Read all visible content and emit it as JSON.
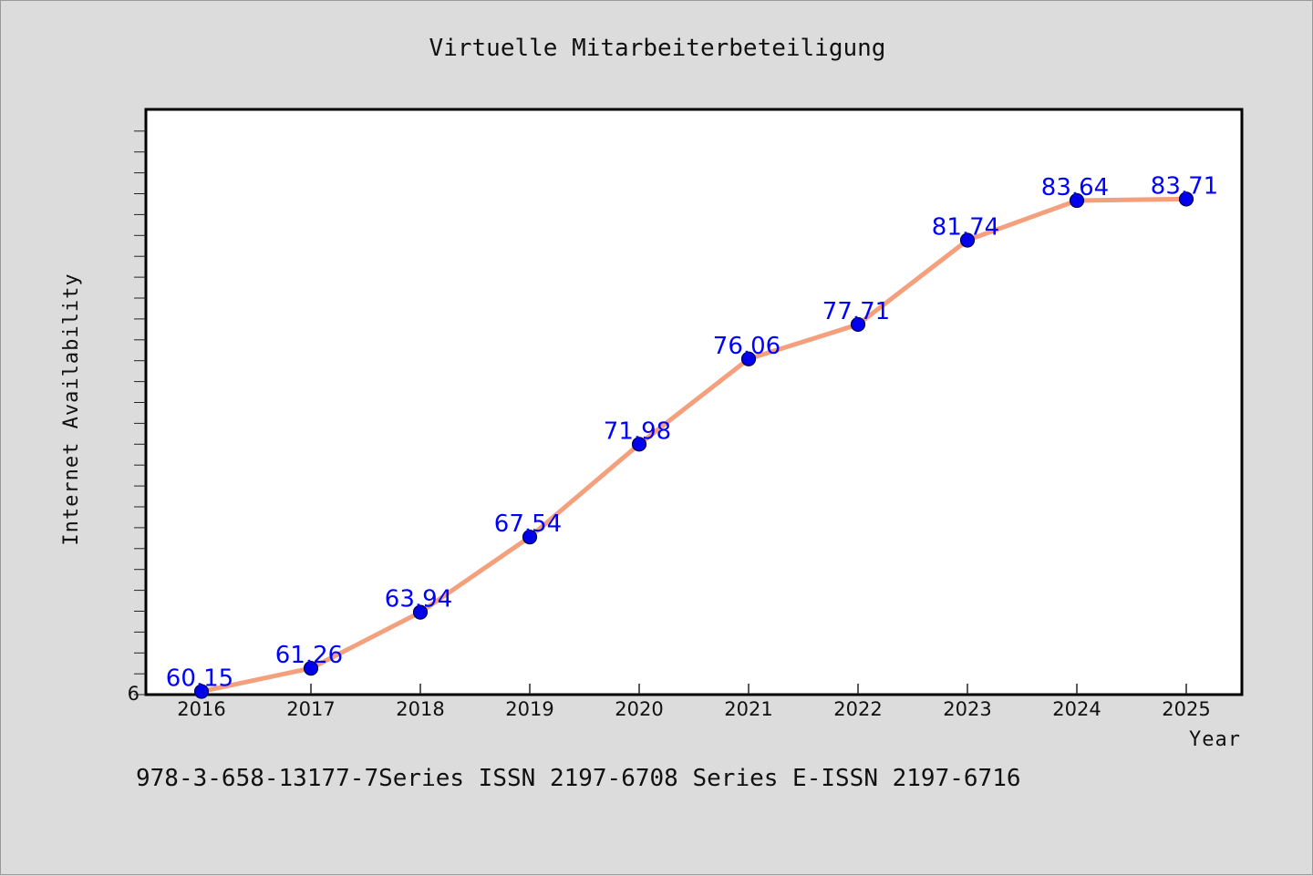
{
  "chart_data": {
    "type": "line",
    "title": "Virtuelle Mitarbeiterbeteiligung",
    "xlabel": "Year",
    "ylabel": "Internet Availability",
    "x": [
      "2016",
      "2017",
      "2018",
      "2019",
      "2020",
      "2021",
      "2022",
      "2023",
      "2024",
      "2025"
    ],
    "series": [
      {
        "values": [
          60.15,
          61.26,
          63.94,
          67.54,
          71.98,
          76.06,
          77.71,
          81.74,
          83.64,
          83.71
        ],
        "labels": [
          "60.15",
          "61.26",
          "63.94",
          "67.54",
          "71.98",
          "76.06",
          "77.71",
          "81.74",
          "83.64",
          "83.71"
        ]
      }
    ],
    "ylim": [
      60,
      88
    ],
    "y_tick_label": "6",
    "line_color": "#f4a07c",
    "marker_color": "#0000ee",
    "label_color": "#0000ff",
    "grid": false,
    "legend": "none"
  },
  "footnote": "978-3-658-13177-7Series ISSN 2197-6708 Series E-ISSN 2197-6716"
}
